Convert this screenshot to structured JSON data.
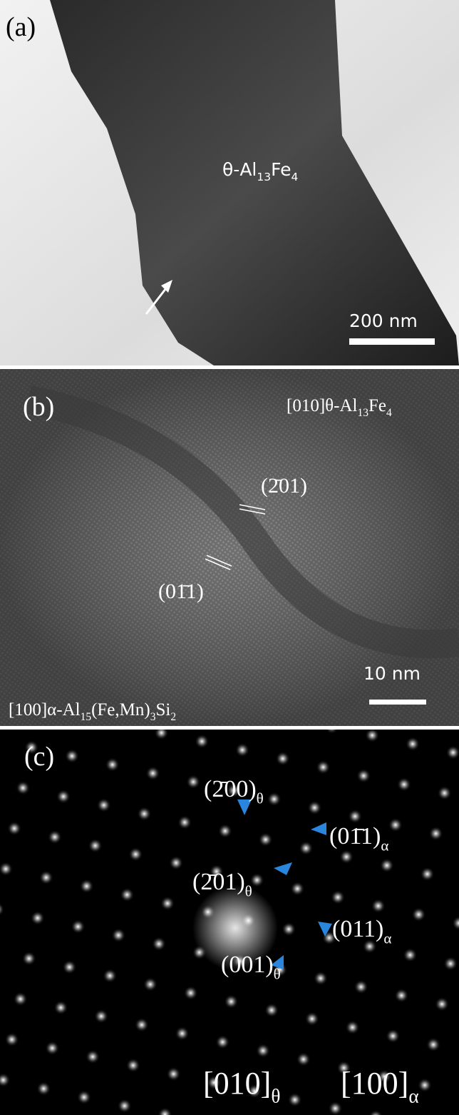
{
  "panels": [
    {
      "label": "(a)",
      "phase": [
        "θ-Al",
        "13",
        "Fe",
        "4"
      ],
      "scale_bar": "200 nm"
    },
    {
      "label": "(b)",
      "zone_top": [
        "[010]θ-Al",
        "13",
        "Fe",
        "4"
      ],
      "planes": [
        "(2̄01)",
        "(01̄1)"
      ],
      "zone_bottom": [
        "[100]α-Al",
        "15",
        "(Fe,Mn)",
        "3",
        "Si",
        "2"
      ],
      "scale_bar": "10 nm"
    },
    {
      "label": "(c)",
      "spots": [
        [
          "(2̄00)",
          "θ"
        ],
        [
          "(01̄1)",
          "α"
        ],
        [
          "(2̄01)",
          "θ"
        ],
        [
          "(011)",
          "α"
        ],
        [
          "(001)",
          "θ"
        ]
      ],
      "zones": [
        [
          "[010]",
          "θ"
        ],
        [
          "[100]",
          "α"
        ]
      ]
    }
  ]
}
